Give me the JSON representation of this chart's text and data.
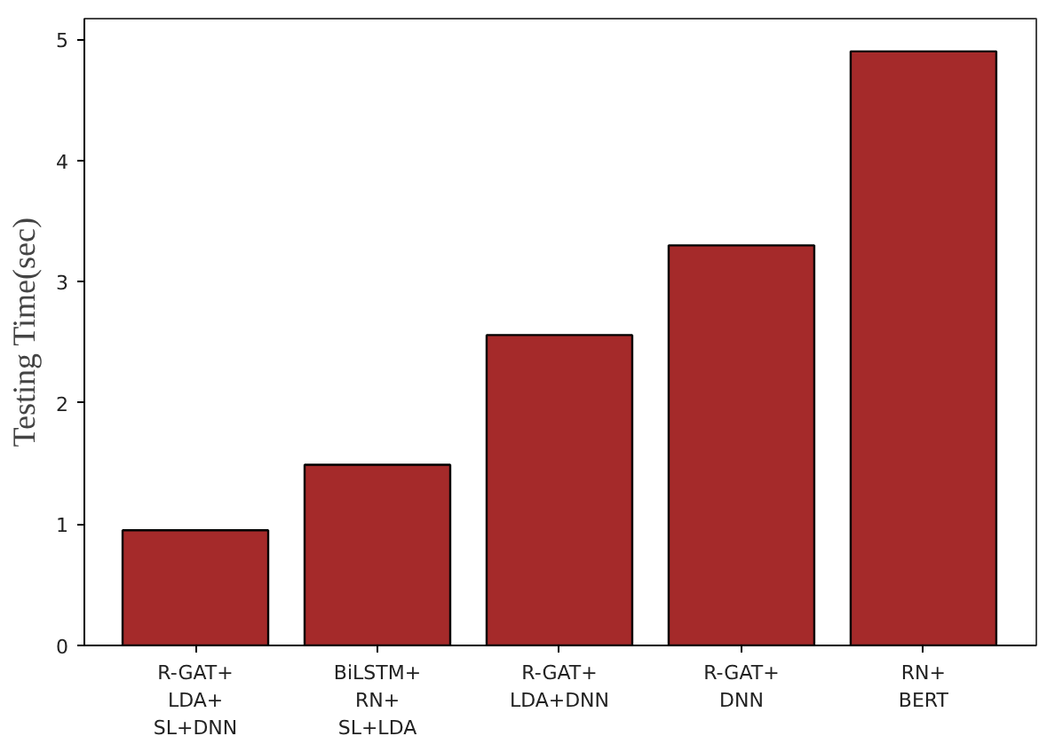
{
  "chart_data": {
    "type": "bar",
    "ylabel": "Testing Time(sec)",
    "categories": [
      "R-GAT+\nLDA+\nSL+DNN",
      "BiLSTM+\nRN+\nSL+LDA",
      "R-GAT+\nLDA+DNN",
      "R-GAT+\nDNN",
      "RN+\nBERT"
    ],
    "values": [
      0.95,
      1.49,
      2.56,
      3.3,
      4.9
    ],
    "color": "#a52a2a",
    "ylim": [
      0,
      5.17
    ],
    "yticks": [
      0,
      1,
      2,
      3,
      4,
      5
    ],
    "grid": false
  }
}
